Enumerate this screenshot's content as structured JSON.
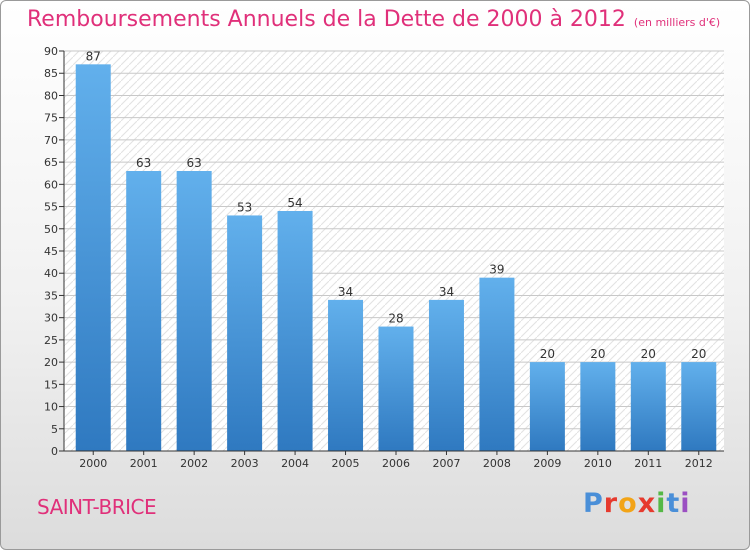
{
  "header": {
    "title": "Remboursements Annuels de la Dette de 2000 à 2012",
    "subtitle": "(en milliers d'€)"
  },
  "footer": {
    "commune": "SAINT-BRICE",
    "logo_text": "Proxiti"
  },
  "colors": {
    "title": "#e0307a",
    "bar_light": "#62b0ec",
    "bar_dark": "#2f79c0",
    "grid": "#c8c8c8",
    "axis": "#333333"
  },
  "chart_data": {
    "type": "bar",
    "title": "Remboursements Annuels de la Dette de 2000 à 2012",
    "subtitle": "(en milliers d'€)",
    "xlabel": "",
    "ylabel": "",
    "categories": [
      "2000",
      "2001",
      "2002",
      "2003",
      "2004",
      "2005",
      "2006",
      "2007",
      "2008",
      "2009",
      "2010",
      "2011",
      "2012"
    ],
    "values": [
      87,
      63,
      63,
      53,
      54,
      34,
      28,
      34,
      39,
      20,
      20,
      20,
      20
    ],
    "ylim": [
      0,
      90
    ],
    "yticks": [
      0,
      5,
      10,
      15,
      20,
      25,
      30,
      35,
      40,
      45,
      50,
      55,
      60,
      65,
      70,
      75,
      80,
      85,
      90
    ],
    "grid": true,
    "data_labels": true
  }
}
